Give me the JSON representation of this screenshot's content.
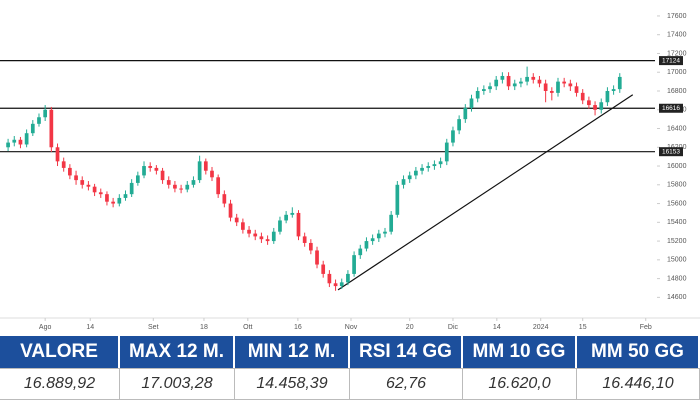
{
  "chart_data": {
    "type": "candlestick",
    "ohlc": [
      [
        16200,
        16290,
        16160,
        16250
      ],
      [
        16250,
        16320,
        16210,
        16280
      ],
      [
        16280,
        16310,
        16190,
        16230
      ],
      [
        16230,
        16390,
        16200,
        16350
      ],
      [
        16350,
        16490,
        16320,
        16450
      ],
      [
        16450,
        16560,
        16420,
        16520
      ],
      [
        16520,
        16650,
        16480,
        16600
      ],
      [
        16600,
        16630,
        16150,
        16200
      ],
      [
        16200,
        16240,
        16000,
        16050
      ],
      [
        16050,
        16090,
        15940,
        15980
      ],
      [
        15980,
        16020,
        15860,
        15900
      ],
      [
        15900,
        15950,
        15800,
        15850
      ],
      [
        15850,
        15890,
        15760,
        15800
      ],
      [
        15800,
        15840,
        15740,
        15780
      ],
      [
        15780,
        15810,
        15680,
        15720
      ],
      [
        15720,
        15760,
        15660,
        15700
      ],
      [
        15700,
        15730,
        15580,
        15620
      ],
      [
        15620,
        15660,
        15560,
        15600
      ],
      [
        15600,
        15700,
        15570,
        15660
      ],
      [
        15660,
        15740,
        15630,
        15700
      ],
      [
        15700,
        15860,
        15670,
        15820
      ],
      [
        15820,
        15940,
        15790,
        15900
      ],
      [
        15900,
        16050,
        15870,
        16000
      ],
      [
        16000,
        16040,
        15940,
        15980
      ],
      [
        15980,
        16010,
        15910,
        15950
      ],
      [
        15950,
        15980,
        15810,
        15850
      ],
      [
        15850,
        15890,
        15760,
        15800
      ],
      [
        15800,
        15840,
        15720,
        15760
      ],
      [
        15760,
        15800,
        15710,
        15750
      ],
      [
        15750,
        15840,
        15720,
        15800
      ],
      [
        15800,
        15890,
        15770,
        15850
      ],
      [
        15850,
        16110,
        15820,
        16050
      ],
      [
        16050,
        16080,
        15910,
        15950
      ],
      [
        15950,
        15990,
        15840,
        15880
      ],
      [
        15880,
        15910,
        15660,
        15700
      ],
      [
        15700,
        15740,
        15560,
        15600
      ],
      [
        15600,
        15640,
        15410,
        15450
      ],
      [
        15450,
        15490,
        15360,
        15400
      ],
      [
        15400,
        15440,
        15280,
        15320
      ],
      [
        15320,
        15360,
        15240,
        15280
      ],
      [
        15280,
        15320,
        15210,
        15250
      ],
      [
        15250,
        15290,
        15180,
        15220
      ],
      [
        15220,
        15260,
        15160,
        15200
      ],
      [
        15200,
        15340,
        15170,
        15300
      ],
      [
        15300,
        15460,
        15270,
        15420
      ],
      [
        15420,
        15520,
        15390,
        15480
      ],
      [
        15480,
        15560,
        15450,
        15500
      ],
      [
        15500,
        15530,
        15210,
        15250
      ],
      [
        15250,
        15290,
        15140,
        15180
      ],
      [
        15180,
        15220,
        15060,
        15100
      ],
      [
        15100,
        15140,
        14910,
        14950
      ],
      [
        14950,
        14990,
        14810,
        14850
      ],
      [
        14850,
        14890,
        14710,
        14750
      ],
      [
        14750,
        14790,
        14670,
        14720
      ],
      [
        14720,
        14800,
        14690,
        14760
      ],
      [
        14760,
        14890,
        14730,
        14850
      ],
      [
        14850,
        15090,
        14820,
        15050
      ],
      [
        15050,
        15160,
        15010,
        15120
      ],
      [
        15120,
        15240,
        15090,
        15200
      ],
      [
        15200,
        15270,
        15160,
        15230
      ],
      [
        15230,
        15320,
        15190,
        15280
      ],
      [
        15280,
        15340,
        15240,
        15300
      ],
      [
        15300,
        15520,
        15270,
        15480
      ],
      [
        15480,
        15840,
        15450,
        15800
      ],
      [
        15800,
        15900,
        15760,
        15860
      ],
      [
        15860,
        15940,
        15820,
        15900
      ],
      [
        15900,
        15990,
        15860,
        15950
      ],
      [
        15950,
        16020,
        15910,
        15980
      ],
      [
        15980,
        16040,
        15940,
        16000
      ],
      [
        16000,
        16060,
        15960,
        16020
      ],
      [
        16020,
        16090,
        15980,
        16050
      ],
      [
        16050,
        16290,
        16010,
        16250
      ],
      [
        16250,
        16420,
        16210,
        16380
      ],
      [
        16380,
        16540,
        16340,
        16500
      ],
      [
        16500,
        16660,
        16460,
        16620
      ],
      [
        16620,
        16760,
        16580,
        16720
      ],
      [
        16720,
        16840,
        16680,
        16800
      ],
      [
        16800,
        16860,
        16760,
        16820
      ],
      [
        16820,
        16890,
        16780,
        16850
      ],
      [
        16850,
        16960,
        16810,
        16920
      ],
      [
        16920,
        17000,
        16880,
        16960
      ],
      [
        16960,
        17000,
        16810,
        16850
      ],
      [
        16850,
        16920,
        16810,
        16880
      ],
      [
        16880,
        16940,
        16840,
        16900
      ],
      [
        16900,
        17060,
        16860,
        16950
      ],
      [
        16950,
        16990,
        16880,
        16920
      ],
      [
        16920,
        16960,
        16840,
        16880
      ],
      [
        16880,
        16920,
        16680,
        16800
      ],
      [
        16800,
        16840,
        16700,
        16780
      ],
      [
        16780,
        16940,
        16740,
        16900
      ],
      [
        16900,
        16940,
        16840,
        16880
      ],
      [
        16880,
        16920,
        16800,
        16850
      ],
      [
        16850,
        16890,
        16740,
        16780
      ],
      [
        16780,
        16820,
        16660,
        16700
      ],
      [
        16700,
        16740,
        16610,
        16650
      ],
      [
        16650,
        16690,
        16540,
        16600
      ],
      [
        16600,
        16720,
        16560,
        16680
      ],
      [
        16680,
        16840,
        16640,
        16800
      ],
      [
        16800,
        16860,
        16760,
        16820
      ],
      [
        16820,
        16990,
        16780,
        16950
      ]
    ],
    "up_color": "#22ab94",
    "down_color": "#f23645",
    "xlim": [
      -0.5,
      104.7
    ],
    "xticks": [
      {
        "value": 6,
        "label": "Ago"
      },
      {
        "value": 13.3,
        "label": "14"
      },
      {
        "value": 23.5,
        "label": "Set"
      },
      {
        "value": 31.7,
        "label": "18"
      },
      {
        "value": 38.8,
        "label": "Ott"
      },
      {
        "value": 46.9,
        "label": "16"
      },
      {
        "value": 55.5,
        "label": "Nov"
      },
      {
        "value": 65,
        "label": "20"
      },
      {
        "value": 72,
        "label": "Dic"
      },
      {
        "value": 79.1,
        "label": "14"
      },
      {
        "value": 86.2,
        "label": "2024"
      },
      {
        "value": 93,
        "label": "15"
      },
      {
        "value": 103.2,
        "label": "Feb"
      }
    ],
    "ylim": [
      14380,
      17770
    ],
    "yticks": [
      14600,
      14800,
      15000,
      15200,
      15400,
      15600,
      15800,
      16000,
      16200,
      16400,
      16600,
      16800,
      17000,
      17200,
      17400,
      17600
    ],
    "hlines": [
      17124,
      16616,
      16153
    ],
    "trendline": {
      "x": [
        53.4,
        101.1
      ],
      "y": [
        14680,
        16760
      ]
    }
  },
  "table": {
    "headers": [
      "VALORE",
      "MAX 12 M.",
      "MIN 12 M.",
      "RSI 14 GG",
      "MM 10 GG",
      "MM 50 GG"
    ],
    "rows": [
      [
        "16.889,92",
        "17.003,28",
        "14.458,39",
        "62,76",
        "16.620,0",
        "16.446,10"
      ]
    ]
  }
}
